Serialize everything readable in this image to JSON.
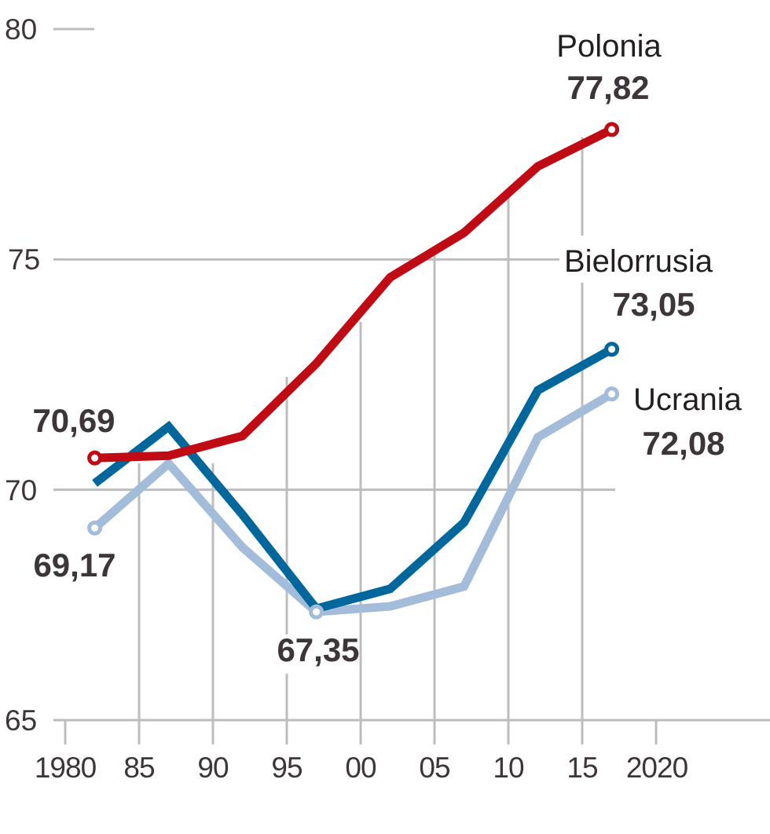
{
  "chart_data": {
    "type": "line",
    "title": "",
    "xlabel": "",
    "ylabel": "",
    "x": [
      1982,
      1987,
      1992,
      1997,
      2002,
      2007,
      2012,
      2017
    ],
    "xlim": [
      1980,
      2020
    ],
    "ylim": [
      65,
      80
    ],
    "grid": true,
    "y_ticks": [
      {
        "value": 80,
        "label": "80"
      },
      {
        "value": 75,
        "label": "75"
      },
      {
        "value": 70,
        "label": "70"
      },
      {
        "value": 65,
        "label": "65"
      }
    ],
    "x_ticks": [
      {
        "value": 1980,
        "label": "1980"
      },
      {
        "value": 1985,
        "label": "85"
      },
      {
        "value": 1990,
        "label": "90"
      },
      {
        "value": 1995,
        "label": "95"
      },
      {
        "value": 2000,
        "label": "00"
      },
      {
        "value": 2005,
        "label": "05"
      },
      {
        "value": 2010,
        "label": "10"
      },
      {
        "value": 2015,
        "label": "15"
      },
      {
        "value": 2020,
        "label": "2020"
      }
    ],
    "series": [
      {
        "name": "Ucrania",
        "color": "#a3bcd9",
        "values": [
          69.17,
          70.57,
          68.75,
          67.35,
          67.47,
          67.9,
          71.14,
          72.08
        ]
      },
      {
        "name": "Bielorrusia",
        "color": "#00679c",
        "values": [
          70.14,
          71.37,
          69.46,
          67.42,
          67.85,
          69.29,
          72.16,
          73.05
        ]
      },
      {
        "name": "Polonia",
        "color": "#c00a14",
        "values": [
          70.69,
          70.74,
          71.17,
          72.74,
          74.61,
          75.58,
          77.02,
          77.82
        ]
      }
    ],
    "annotations": [
      {
        "text": "Polonia",
        "series": "Polonia",
        "kind": "name"
      },
      {
        "text": "77,82",
        "series": "Polonia",
        "kind": "value",
        "x": 2017
      },
      {
        "text": "Bielorrusia",
        "series": "Bielorrusia",
        "kind": "name"
      },
      {
        "text": "73,05",
        "series": "Bielorrusia",
        "kind": "value",
        "x": 2017
      },
      {
        "text": "Ucrania",
        "series": "Ucrania",
        "kind": "name"
      },
      {
        "text": "72,08",
        "series": "Ucrania",
        "kind": "value",
        "x": 2017
      },
      {
        "text": "70,69",
        "series": "Polonia",
        "kind": "value",
        "x": 1982
      },
      {
        "text": "69,17",
        "series": "Ucrania",
        "kind": "value",
        "x": 1982
      },
      {
        "text": "67,35",
        "series": "Ucrania",
        "kind": "value",
        "x": 1997
      }
    ]
  }
}
